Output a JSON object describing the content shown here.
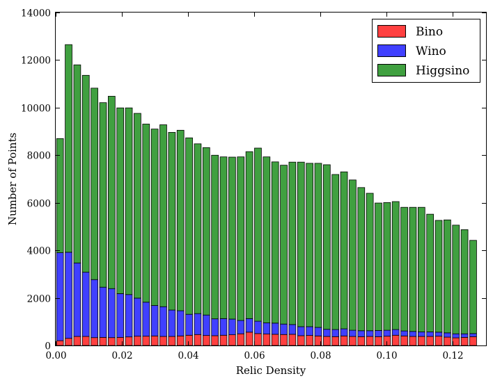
{
  "chart_data": {
    "type": "bar",
    "stacked": true,
    "title": "",
    "xlabel": "Relic Density",
    "ylabel": "Number of Points",
    "xlim": [
      0.0,
      0.13
    ],
    "ylim": [
      0,
      14000
    ],
    "bin_width": 0.0026,
    "x": [
      0.0013,
      0.0039,
      0.0065,
      0.0091,
      0.0117,
      0.0143,
      0.0169,
      0.0195,
      0.0221,
      0.0247,
      0.0273,
      0.0299,
      0.0325,
      0.0351,
      0.0377,
      0.0403,
      0.0429,
      0.0455,
      0.0481,
      0.0507,
      0.0533,
      0.0559,
      0.0585,
      0.0611,
      0.0637,
      0.0663,
      0.0689,
      0.0715,
      0.0741,
      0.0767,
      0.0793,
      0.0819,
      0.0845,
      0.0871,
      0.0897,
      0.0923,
      0.0949,
      0.0975,
      0.1001,
      0.1027,
      0.1053,
      0.1079,
      0.1105,
      0.1131,
      0.1157,
      0.1183,
      0.1209,
      0.1235,
      0.1261
    ],
    "xticks": [
      "0.00",
      "0.02",
      "0.04",
      "0.06",
      "0.08",
      "0.10",
      "0.12"
    ],
    "xtick_values": [
      0.0,
      0.02,
      0.04,
      0.06,
      0.08,
      0.1,
      0.12
    ],
    "yticks": [
      "0",
      "2000",
      "4000",
      "6000",
      "8000",
      "10000",
      "12000",
      "14000"
    ],
    "ytick_values": [
      0,
      2000,
      4000,
      6000,
      8000,
      10000,
      12000,
      14000
    ],
    "grid": false,
    "legend_position": "top-right",
    "series": [
      {
        "name": "Bino",
        "color": "#ff4040",
        "values": [
          200,
          300,
          380,
          380,
          330,
          340,
          330,
          340,
          360,
          390,
          390,
          400,
          380,
          380,
          400,
          430,
          460,
          420,
          410,
          430,
          450,
          490,
          560,
          500,
          480,
          470,
          460,
          470,
          410,
          420,
          400,
          380,
          370,
          400,
          380,
          370,
          380,
          370,
          390,
          430,
          400,
          380,
          380,
          380,
          390,
          350,
          320,
          340,
          370
        ]
      },
      {
        "name": "Wino",
        "color": "#4040ff",
        "values": [
          3700,
          3620,
          3090,
          2700,
          2440,
          2110,
          2060,
          1840,
          1780,
          1600,
          1430,
          1280,
          1250,
          1110,
          1060,
          880,
          880,
          860,
          710,
          700,
          660,
          560,
          570,
          520,
          470,
          470,
          440,
          410,
          380,
          370,
          360,
          300,
          300,
          300,
          260,
          250,
          240,
          260,
          250,
          240,
          210,
          210,
          190,
          190,
          170,
          180,
          170,
          150,
          130
        ]
      },
      {
        "name": "Higgsino",
        "color": "#40a040",
        "values": [
          4800,
          8730,
          8330,
          8280,
          8050,
          7760,
          8090,
          7810,
          7850,
          7770,
          7490,
          7420,
          7650,
          7470,
          7590,
          7420,
          7140,
          7040,
          6880,
          6800,
          6810,
          6880,
          7020,
          7280,
          6980,
          6780,
          6680,
          6830,
          6920,
          6870,
          6900,
          6920,
          6520,
          6600,
          6320,
          6020,
          5780,
          5360,
          5370,
          5380,
          5200,
          5220,
          5240,
          4950,
          4700,
          4750,
          4570,
          4380,
          3920
        ]
      }
    ]
  }
}
